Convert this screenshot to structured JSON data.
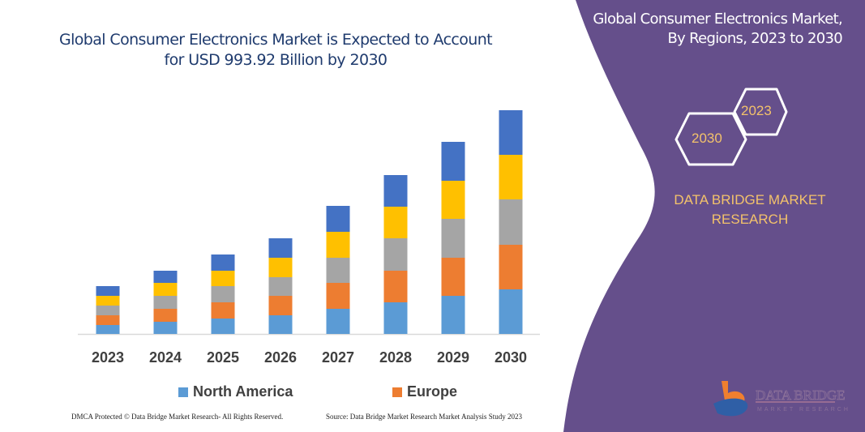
{
  "chart_data": {
    "type": "bar",
    "stacked": true,
    "title": "Global Consumer Electronics Market is Expected to Account for USD 993.92 Billion by 2030",
    "categories": [
      "2023",
      "2024",
      "2025",
      "2026",
      "2027",
      "2028",
      "2029",
      "2030"
    ],
    "series": [
      {
        "name": "North America",
        "color": "#5b9bd5",
        "values": [
          11,
          15,
          19,
          23,
          31,
          39,
          47,
          55
        ]
      },
      {
        "name": "Europe",
        "color": "#ed7d31",
        "values": [
          12,
          16,
          20,
          24,
          32,
          39,
          47,
          55
        ]
      },
      {
        "color": "#a5a5a5",
        "values": [
          12,
          16,
          20,
          23,
          31,
          40,
          48,
          56
        ]
      },
      {
        "color": "#ffc000",
        "values": [
          12,
          16,
          19,
          24,
          32,
          39,
          47,
          55
        ]
      },
      {
        "color": "#4472c4",
        "values": [
          12,
          15,
          20,
          24,
          32,
          39,
          48,
          55
        ]
      }
    ],
    "grid": false,
    "legend": "bottom"
  },
  "legend": {
    "north_america": "North America",
    "europe": "Europe"
  },
  "footer": {
    "left": "DMCA Protected © Data Bridge Market Research- All Rights Reserved.",
    "right": "Source: Data Bridge Market Research Market Analysis Study 2023"
  },
  "panel": {
    "title_line1": "Global Consumer Electronics Market,",
    "title_line2": "By Regions, 2023 to 2030",
    "hex_2023": "2023",
    "hex_2030": "2030",
    "brand_line1": "DATA BRIDGE MARKET",
    "brand_line2": "RESEARCH",
    "logo_text": "DATA BRIDGE MARKET RESEARCH",
    "color": "#654f8b",
    "accent": "#f3c26b"
  }
}
